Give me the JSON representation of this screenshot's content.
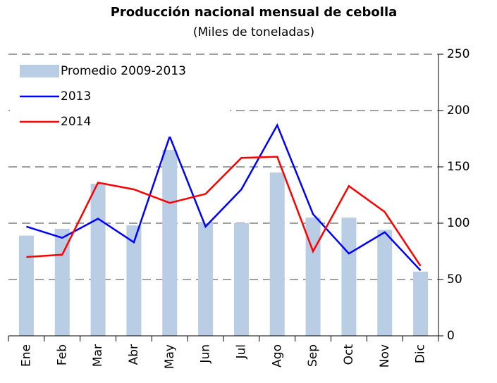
{
  "chart_data": {
    "type": "bar_line",
    "title": "Producción nacional mensual de cebolla",
    "subtitle": "(Miles de toneladas)",
    "categories": [
      "Ene",
      "Feb",
      "Mar",
      "Abr",
      "May",
      "Jun",
      "Jul",
      "Ago",
      "Sep",
      "Oct",
      "Nov",
      "Dic"
    ],
    "series": [
      {
        "name": "Promedio 2009-2013",
        "type": "bar",
        "color": "#b9cde5",
        "values": [
          89,
          95,
          135,
          98,
          165,
          100,
          100,
          145,
          105,
          105,
          94,
          57
        ]
      },
      {
        "name": "2013",
        "type": "line",
        "color": "#0000ff",
        "values": [
          97,
          87,
          104,
          83,
          177,
          97,
          130,
          187,
          108,
          73,
          92,
          58
        ]
      },
      {
        "name": "2014",
        "type": "line",
        "color": "#ff0000",
        "values": [
          70,
          72,
          136,
          130,
          118,
          126,
          158,
          159,
          75,
          133,
          110,
          62
        ]
      }
    ],
    "ylim": [
      0,
      250
    ],
    "yticks": [
      0,
      50,
      100,
      150,
      200,
      250
    ],
    "grid": true,
    "legend": "top-left"
  }
}
